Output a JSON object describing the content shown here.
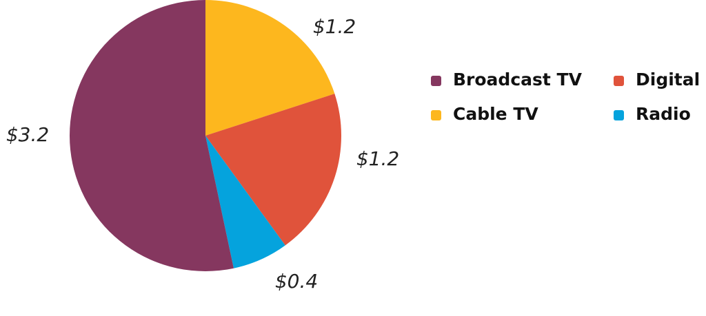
{
  "chart_data": {
    "type": "pie",
    "categories": [
      "Cable TV",
      "Digital",
      "Radio",
      "Broadcast TV"
    ],
    "values": [
      1.2,
      1.2,
      0.4,
      3.2
    ],
    "value_labels": [
      "$1.2",
      "$1.2",
      "$0.4",
      "$3.2"
    ],
    "colors": [
      "#fdb71e",
      "#e0533b",
      "#05a3dd",
      "#85375f"
    ],
    "legend": "right"
  }
}
